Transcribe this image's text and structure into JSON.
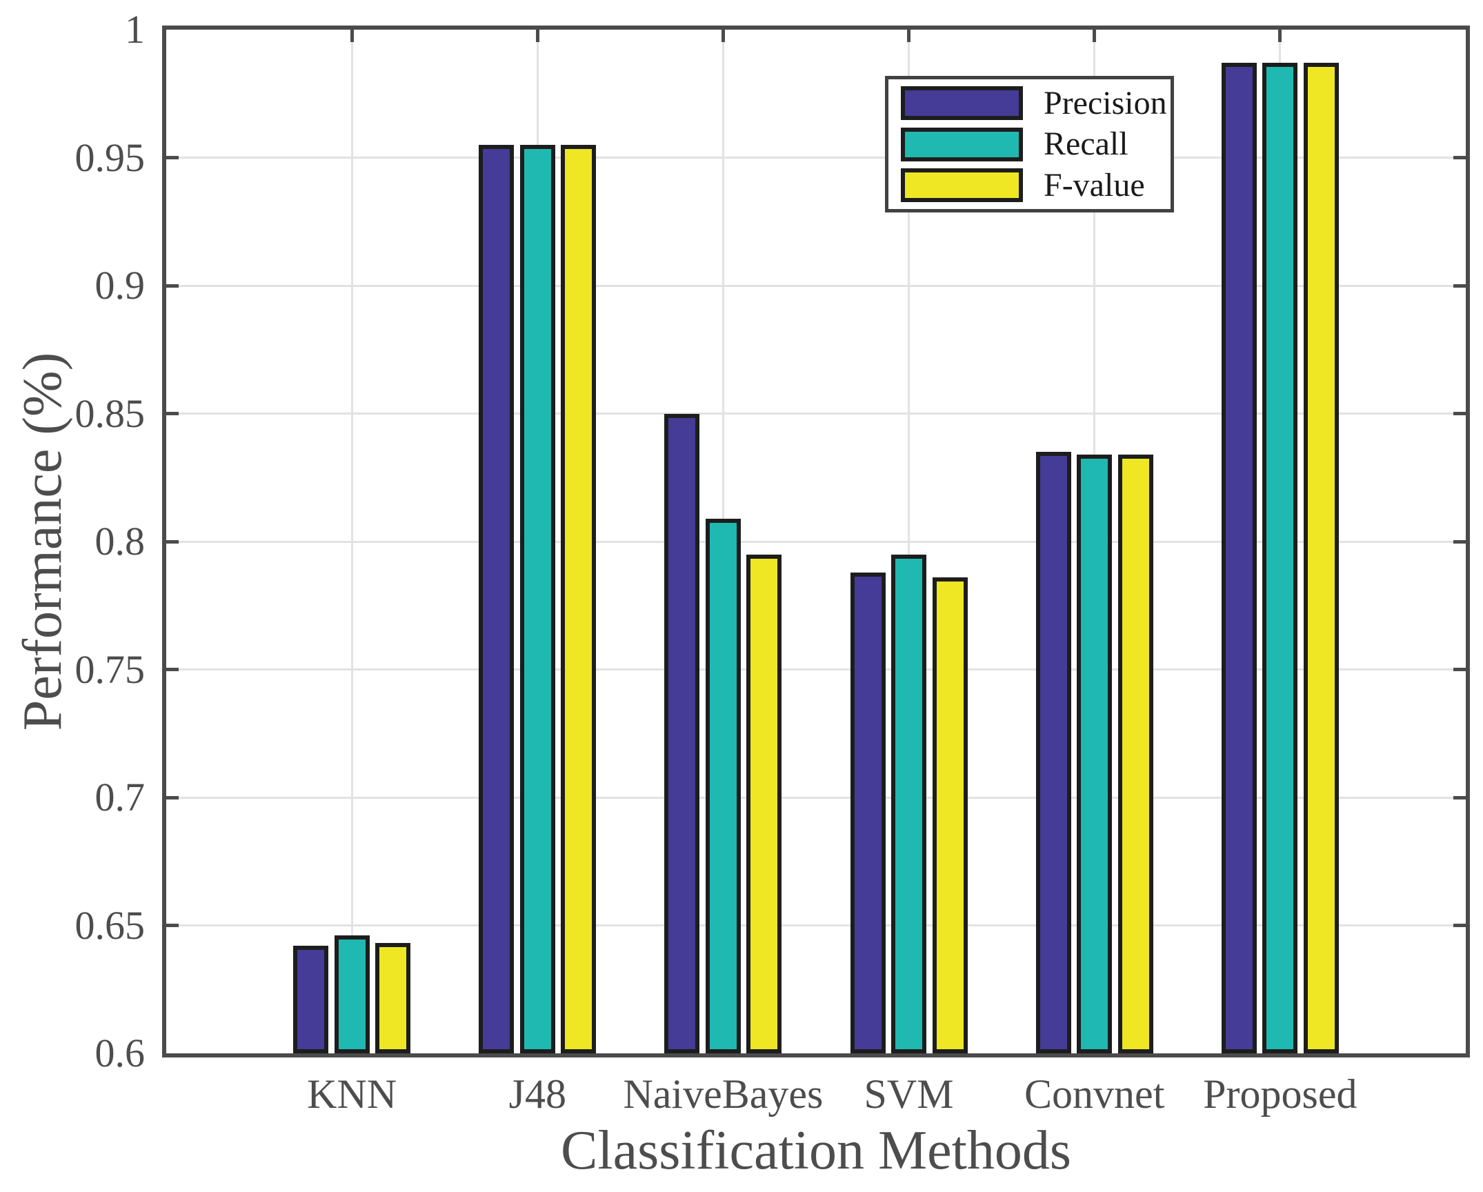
{
  "chart_data": {
    "type": "bar",
    "title": "",
    "xlabel": "Classification Methods",
    "ylabel": "Performance (%)",
    "categories": [
      "KNN",
      "J48",
      "NaiveBayes",
      "SVM",
      "Convnet",
      "Proposed"
    ],
    "series": [
      {
        "name": "Precision",
        "color": "#443C96",
        "values": [
          0.642,
          0.955,
          0.85,
          0.788,
          0.835,
          0.987
        ]
      },
      {
        "name": "Recall",
        "color": "#20B9B1",
        "values": [
          0.646,
          0.955,
          0.809,
          0.795,
          0.834,
          0.987
        ]
      },
      {
        "name": "F-value",
        "color": "#EFE724",
        "values": [
          0.643,
          0.955,
          0.795,
          0.786,
          0.834,
          0.987
        ]
      }
    ],
    "ylim": [
      0.6,
      1.0
    ],
    "yticks": [
      0.6,
      0.65,
      0.7,
      0.75,
      0.8,
      0.85,
      0.9,
      0.95,
      1.0
    ],
    "ytick_labels": [
      "0.6",
      "0.65",
      "0.7",
      "0.75",
      "0.8",
      "0.85",
      "0.9",
      "0.95",
      "1"
    ],
    "grid": true,
    "legend_position": "upper-right-inside"
  },
  "colors": {
    "frame": "#4B4B4B",
    "grid": "#E2E2E2",
    "bar_border": "#1D1D1D",
    "tick_text": "#4D4D4D",
    "axis_label_text": "#4D4D4D",
    "legend_text": "#1A1A1A",
    "background": "#FFFFFF"
  }
}
